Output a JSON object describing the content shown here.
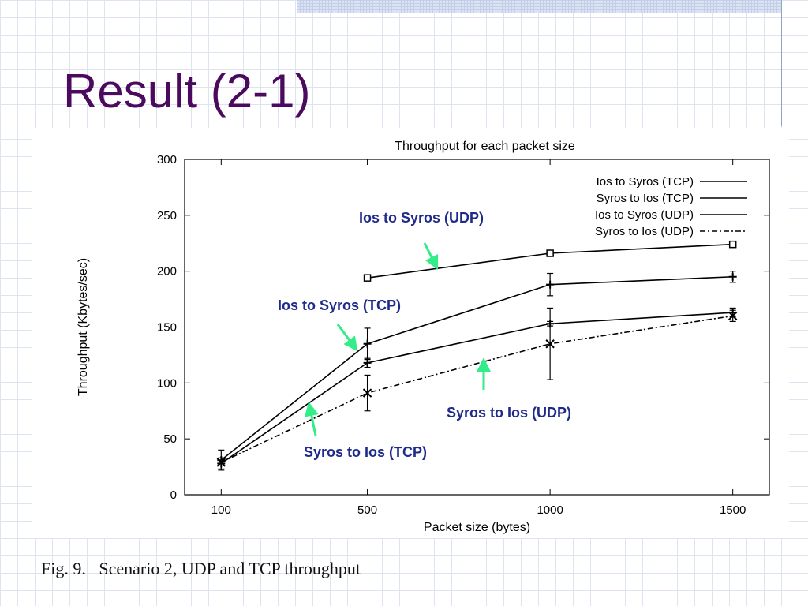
{
  "slide": {
    "title": "Result (2-1)",
    "caption": "Fig. 9.   Scenario 2, UDP and TCP throughput"
  },
  "annotations": {
    "ios_syros_udp": "Ios to Syros (UDP)",
    "ios_syros_tcp": "Ios to Syros (TCP)",
    "syros_ios_udp": "Syros to Ios (UDP)",
    "syros_ios_tcp": "Syros to Ios (TCP)"
  },
  "colors": {
    "title": "#4b0a5e",
    "annotation": "#1f2a8a",
    "arrow": "#33ee88"
  },
  "chart_data": {
    "type": "line",
    "title": "Throughput for each packet size",
    "xlabel": "Packet size (bytes)",
    "ylabel": "Throughput (Kbytes/sec)",
    "xticks": [
      100,
      500,
      1000,
      1500
    ],
    "yticks": [
      0,
      50,
      100,
      150,
      200,
      250,
      300
    ],
    "xlim": [
      0,
      1600
    ],
    "ylim": [
      0,
      300
    ],
    "legend_position": "top-right",
    "series": [
      {
        "name": "Ios to Syros (TCP)",
        "marker": "plus",
        "dash": "",
        "x": [
          100,
          500,
          1000,
          1500
        ],
        "y": [
          31,
          135,
          188,
          195
        ],
        "err": [
          9,
          14,
          10,
          5
        ]
      },
      {
        "name": "Syros to Ios (TCP)",
        "marker": "plus",
        "dash": "",
        "x": [
          100,
          500,
          1000,
          1500
        ],
        "y": [
          28,
          118,
          153,
          163
        ],
        "err": [
          5,
          4,
          2,
          4
        ]
      },
      {
        "name": "Ios to Syros (UDP)",
        "marker": "square",
        "dash": "",
        "x": [
          500,
          1000,
          1500
        ],
        "y": [
          194,
          216,
          224
        ],
        "err": [
          0,
          0,
          0
        ]
      },
      {
        "name": "Syros to Ios (UDP)",
        "marker": "cross",
        "dash": "7,3,2,3",
        "x": [
          100,
          500,
          1000,
          1500
        ],
        "y": [
          29,
          91,
          135,
          160
        ],
        "err": [
          0,
          16,
          32,
          5
        ]
      }
    ]
  }
}
